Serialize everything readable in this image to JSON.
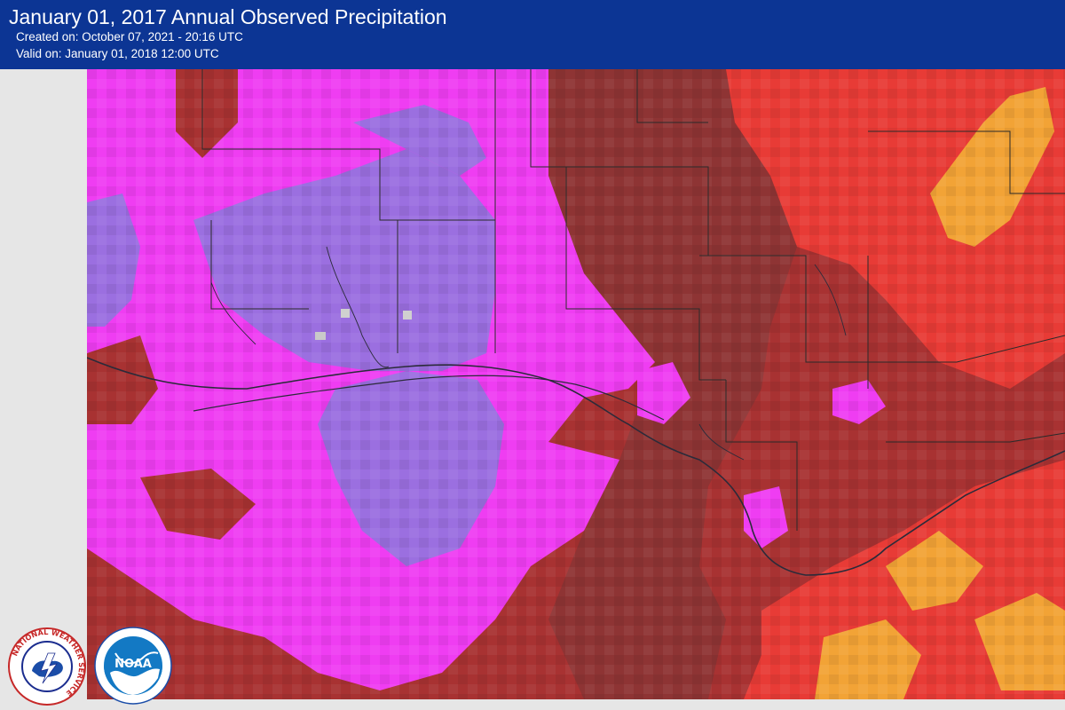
{
  "header": {
    "title": "January 01, 2017 Annual Observed Precipitation",
    "created": "Created on: October 07, 2021 - 20:16 UTC",
    "valid": "Valid on: January 01, 2018 12:00 UTC"
  },
  "colors": {
    "header_bg": "#0c3594",
    "purple": "#9b6fe0",
    "magenta": "#ef3df2",
    "dark_red": "#a83232",
    "brown_red": "#8e3434",
    "red": "#e83b36",
    "orange": "#f2a336",
    "land_gray": "#e6e6e6"
  },
  "logos": {
    "nws": "NATIONAL WEATHER SERVICE",
    "noaa": "NOAA"
  }
}
